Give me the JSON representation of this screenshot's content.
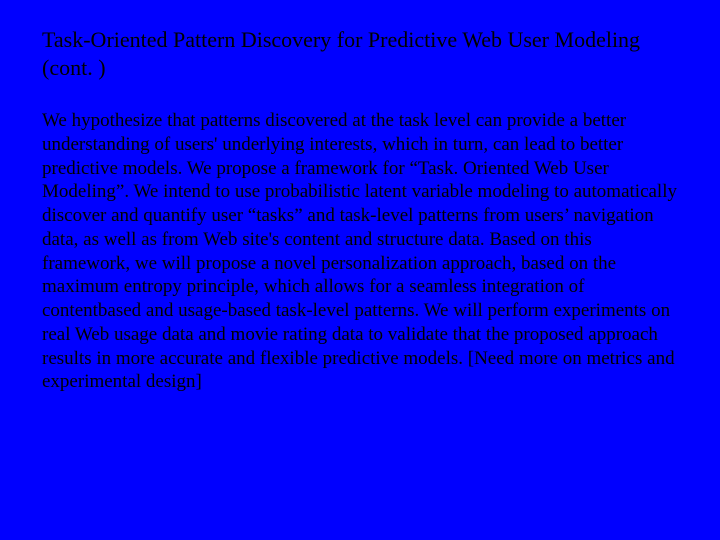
{
  "slide": {
    "title": "Task-Oriented Pattern Discovery for Predictive Web User Modeling (cont. )",
    "body": "We hypothesize that patterns discovered at the task level can provide a better understanding of users' underlying interests, which in turn, can lead to better predictive models. We propose a framework for “Task. Oriented Web User Modeling”. We intend to use probabilistic latent variable modeling to automatically discover and quantify user “tasks” and task-level patterns from users’ navigation data, as well as from Web site's content and structure data. Based on this framework, we will propose a novel personalization approach, based on the maximum entropy principle, which allows for a seamless integration of contentbased and usage-based task-level patterns. We will perform experiments on real Web usage data and movie rating data to validate that the proposed approach results in more accurate and flexible predictive models. [Need more on metrics and experimental design]",
    "colors": {
      "background": "#0000ff",
      "text": "#000000"
    },
    "typography": {
      "title_fontsize": 22,
      "body_fontsize": 19,
      "font_family": "Georgia, Times New Roman, serif",
      "line_height": 1.25
    }
  }
}
